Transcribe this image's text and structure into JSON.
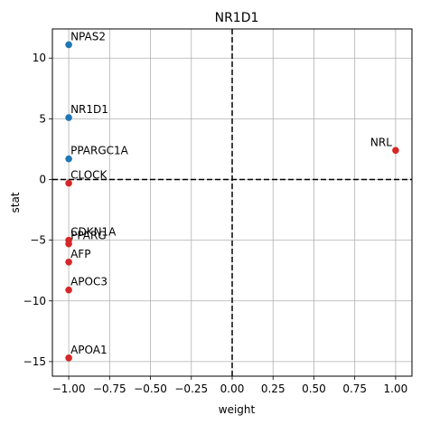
{
  "chart_data": {
    "type": "scatter",
    "title": "NR1D1",
    "xlabel": "weight",
    "ylabel": "stat",
    "xlim": [
      -1.1,
      1.1
    ],
    "ylim": [
      -16.2,
      12.4
    ],
    "xticks": [
      -1.0,
      -0.75,
      -0.5,
      -0.25,
      0.0,
      0.25,
      0.5,
      0.75,
      1.0
    ],
    "xtick_labels": [
      "−1.00",
      "−0.75",
      "−0.50",
      "−0.25",
      "0.00",
      "0.25",
      "0.50",
      "0.75",
      "1.00"
    ],
    "yticks": [
      -15,
      -10,
      -5,
      0,
      5,
      10
    ],
    "ytick_labels": [
      "−15",
      "−10",
      "−5",
      "0",
      "5",
      "10"
    ],
    "grid": true,
    "reference_lines": {
      "x": 0,
      "y": 0,
      "style": "dashed"
    },
    "colors": {
      "positive": "#1f77b4",
      "negative": "#d62728"
    },
    "points": [
      {
        "label": "NPAS2",
        "x": -1.0,
        "y": 11.1,
        "sign": "positive"
      },
      {
        "label": "NR1D1",
        "x": -1.0,
        "y": 5.1,
        "sign": "positive"
      },
      {
        "label": "PPARGC1A",
        "x": -1.0,
        "y": 1.7,
        "sign": "positive"
      },
      {
        "label": "CLOCK",
        "x": -1.0,
        "y": -0.3,
        "sign": "negative"
      },
      {
        "label": "CDKN1A",
        "x": -1.0,
        "y": -5.0,
        "sign": "negative"
      },
      {
        "label": "PPARG",
        "x": -1.0,
        "y": -5.3,
        "sign": "negative"
      },
      {
        "label": "AFP",
        "x": -1.0,
        "y": -6.8,
        "sign": "negative"
      },
      {
        "label": "APOC3",
        "x": -1.0,
        "y": -9.1,
        "sign": "negative"
      },
      {
        "label": "APOA1",
        "x": -1.0,
        "y": -14.7,
        "sign": "negative"
      },
      {
        "label": "NRL",
        "x": 1.0,
        "y": 2.4,
        "sign": "negative"
      }
    ]
  }
}
